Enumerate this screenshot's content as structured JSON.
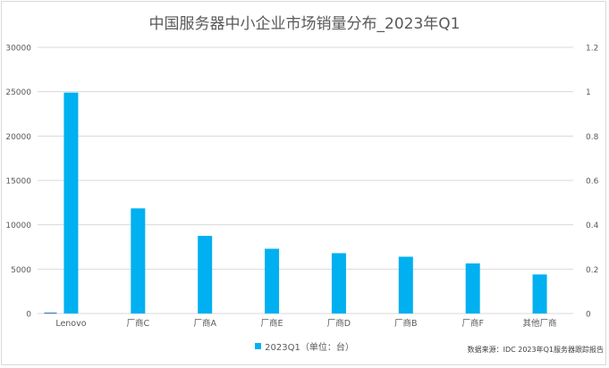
{
  "title": "中国服务器中小企业市场销量分布_2023年Q1",
  "source_note": "数据来源：IDC 2023年Q1服务器跟踪报告",
  "legend": {
    "label": "2023Q1（单位：台）"
  },
  "colors": {
    "bar": "#00b0f0",
    "grid": "#d9d9d9",
    "text": "#595959"
  },
  "chart_data": {
    "type": "bar",
    "title": "中国服务器中小企业市场销量分布_2023年Q1",
    "categories": [
      "Lenovo",
      "厂商C",
      "厂商A",
      "厂商E",
      "厂商D",
      "厂商B",
      "厂商F",
      "其他厂商"
    ],
    "series": [
      {
        "name": "",
        "axis": "left",
        "values": [
          100,
          null,
          null,
          null,
          null,
          null,
          null,
          null
        ]
      },
      {
        "name": "2023Q1（单位：台）",
        "axis": "left",
        "values": [
          24900,
          11850,
          8750,
          7300,
          6800,
          6400,
          5650,
          4400
        ]
      }
    ],
    "ylim": [
      0,
      30000
    ],
    "yticks": [
      "0",
      "5000",
      "10000",
      "15000",
      "20000",
      "25000",
      "30000"
    ],
    "y2lim": [
      0,
      1.2
    ],
    "y2ticks": [
      "0",
      "0.2",
      "0.4",
      "0.6",
      "0.8",
      "1",
      "1.2"
    ],
    "grid": true,
    "legend_position": "bottom"
  }
}
